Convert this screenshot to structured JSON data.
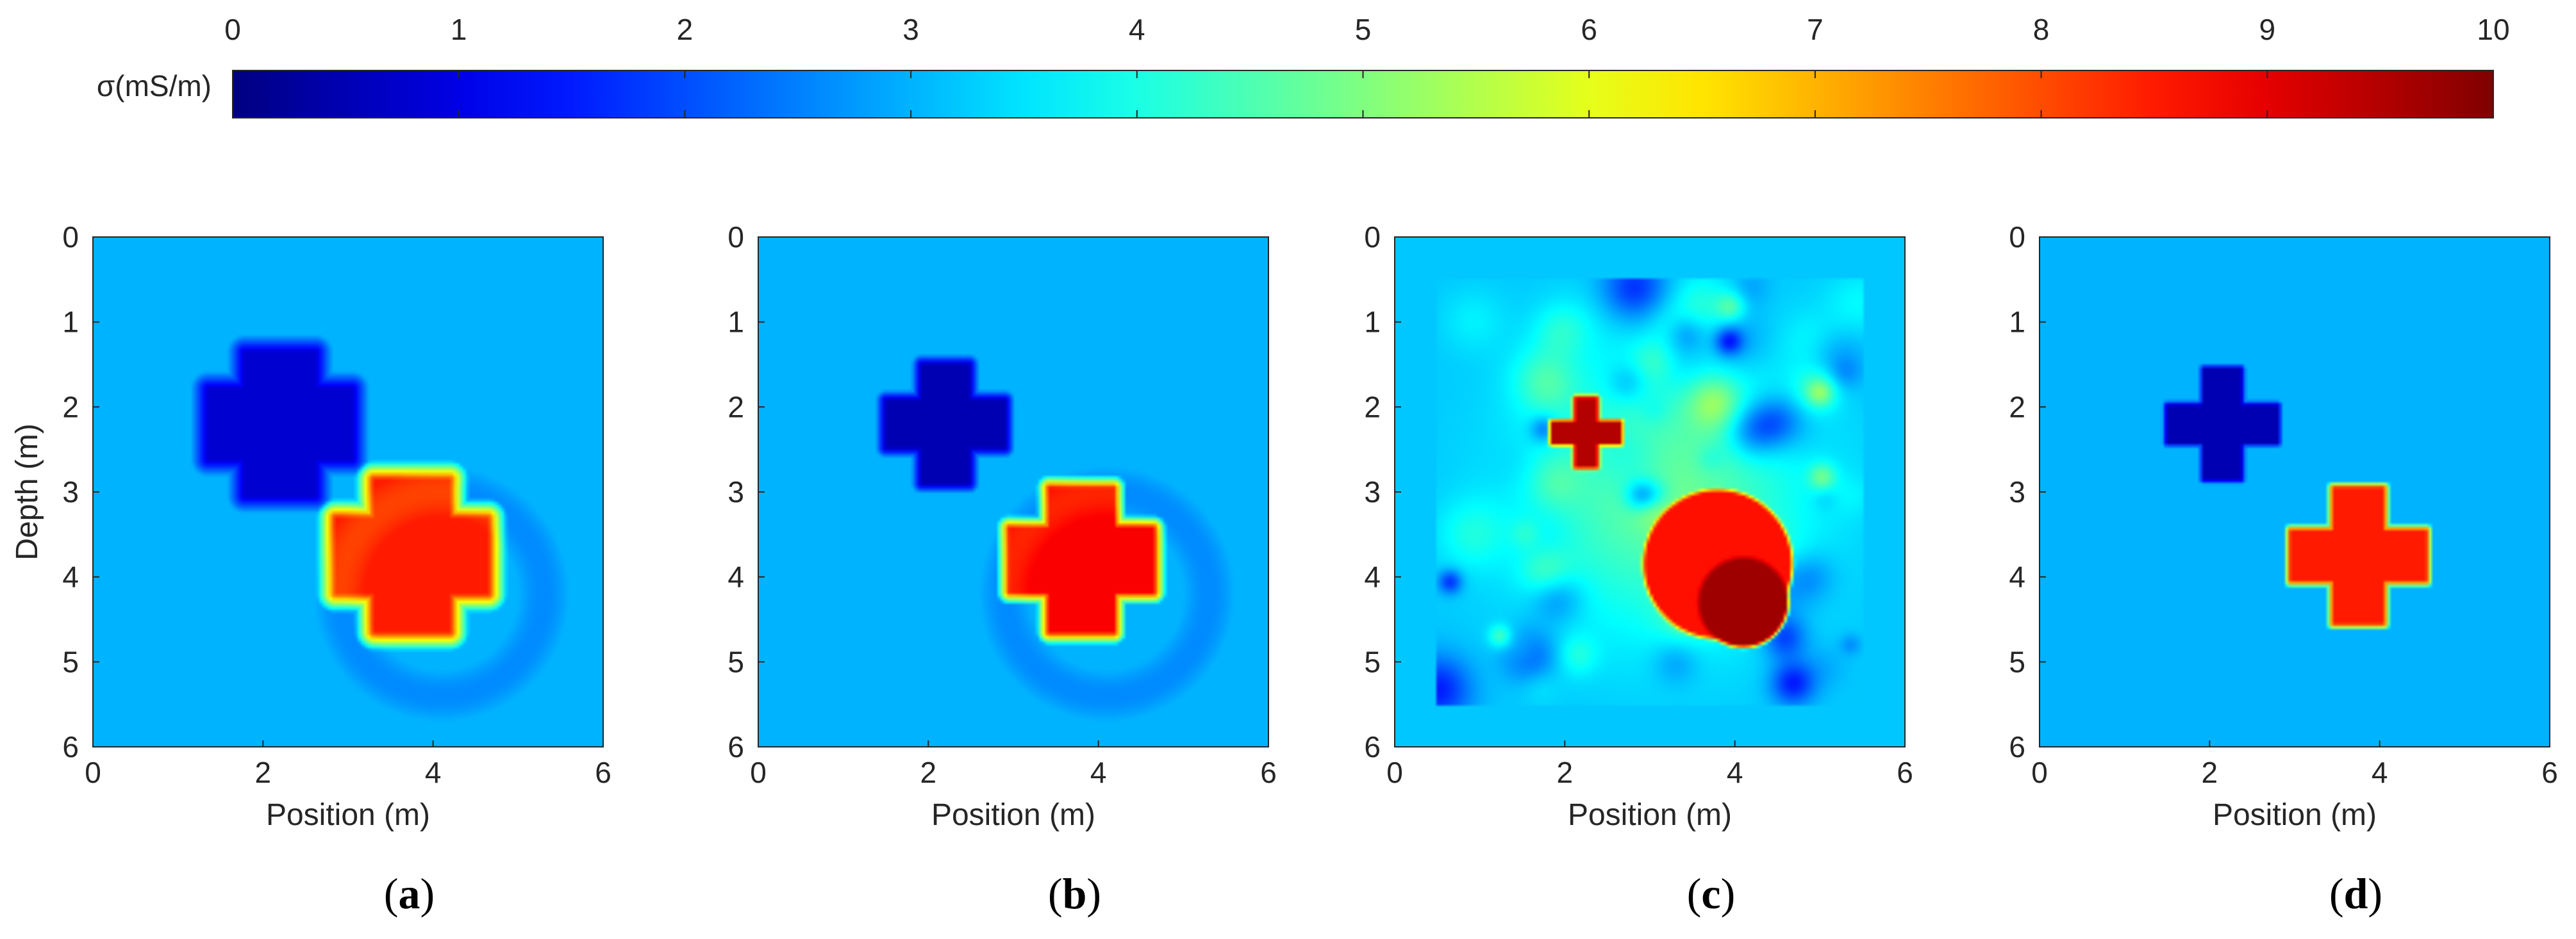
{
  "colorbar": {
    "label": "σ(mS/m)",
    "ticks": [
      "0",
      "1",
      "2",
      "3",
      "4",
      "5",
      "6",
      "7",
      "8",
      "9",
      "10"
    ],
    "range": [
      0,
      10
    ],
    "colormap": "jet"
  },
  "chart_data": [
    {
      "type": "heatmap",
      "panel": "a",
      "caption": "(a)",
      "xlabel": "Position (m)",
      "ylabel": "Depth (m)",
      "xlim": [
        0,
        6
      ],
      "ylim": [
        0,
        6
      ],
      "y_reversed": true,
      "x_ticks": [
        "0",
        "2",
        "4",
        "6"
      ],
      "y_ticks": [
        "0",
        "1",
        "2",
        "3",
        "4",
        "5",
        "6"
      ],
      "background_value": 3.0,
      "anomalies": [
        {
          "shape": "cross",
          "center": [
            2.2,
            2.2
          ],
          "half_length": 0.85,
          "arm_half_width": 0.42,
          "value": 0.8,
          "blur": 0.2
        },
        {
          "shape": "cross",
          "center": [
            3.75,
            3.75
          ],
          "half_length": 0.9,
          "arm_half_width": 0.45,
          "value": 8.5,
          "blur": 0.22
        }
      ]
    },
    {
      "type": "heatmap",
      "panel": "b",
      "caption": "(b)",
      "xlabel": "Position (m)",
      "ylabel": "",
      "xlim": [
        0,
        6
      ],
      "ylim": [
        0,
        6
      ],
      "y_reversed": true,
      "x_ticks": [
        "0",
        "2",
        "4",
        "6"
      ],
      "y_ticks": [
        "0",
        "1",
        "2",
        "3",
        "4",
        "5",
        "6"
      ],
      "background_value": 3.0,
      "anomalies": [
        {
          "shape": "cross",
          "center": [
            2.2,
            2.2
          ],
          "half_length": 0.7,
          "arm_half_width": 0.28,
          "value": 0.5,
          "blur": 0.12
        },
        {
          "shape": "cross",
          "center": [
            3.8,
            3.8
          ],
          "half_length": 0.85,
          "arm_half_width": 0.38,
          "value": 8.8,
          "blur": 0.15
        }
      ]
    },
    {
      "type": "heatmap",
      "panel": "c",
      "caption": "(c)",
      "xlabel": "Position (m)",
      "ylabel": "",
      "xlim": [
        0,
        6
      ],
      "ylim": [
        0,
        6
      ],
      "y_reversed": true,
      "x_ticks": [
        "0",
        "2",
        "4",
        "6"
      ],
      "y_ticks": [
        "0",
        "1",
        "2",
        "3",
        "4",
        "5",
        "6"
      ],
      "background_value": 3.2,
      "noisy": true,
      "anomalies": [
        {
          "shape": "cross",
          "center": [
            2.25,
            2.3
          ],
          "half_length": 0.4,
          "arm_half_width": 0.12,
          "value": 9.5,
          "blur": 0.06
        },
        {
          "shape": "disk",
          "center": [
            3.8,
            3.85
          ],
          "radius": 0.85,
          "value": 8.6,
          "blur": 0.06
        },
        {
          "shape": "disk",
          "center": [
            4.1,
            4.3
          ],
          "radius": 0.5,
          "value": 9.7,
          "blur": 0.06
        }
      ]
    },
    {
      "type": "heatmap",
      "panel": "d",
      "caption": "(d)",
      "xlabel": "Position (m)",
      "ylabel": "",
      "xlim": [
        0,
        6
      ],
      "ylim": [
        0,
        6
      ],
      "y_reversed": true,
      "x_ticks": [
        "0",
        "2",
        "4",
        "6"
      ],
      "y_ticks": [
        "0",
        "1",
        "2",
        "3",
        "4",
        "5",
        "6"
      ],
      "background_value": 3.0,
      "anomalies": [
        {
          "shape": "cross",
          "center": [
            2.15,
            2.2
          ],
          "half_length": 0.65,
          "arm_half_width": 0.22,
          "value": 0.5,
          "blur": 0.06
        },
        {
          "shape": "cross",
          "center": [
            3.75,
            3.75
          ],
          "half_length": 0.8,
          "arm_half_width": 0.3,
          "value": 8.5,
          "blur": 0.08
        }
      ]
    }
  ]
}
